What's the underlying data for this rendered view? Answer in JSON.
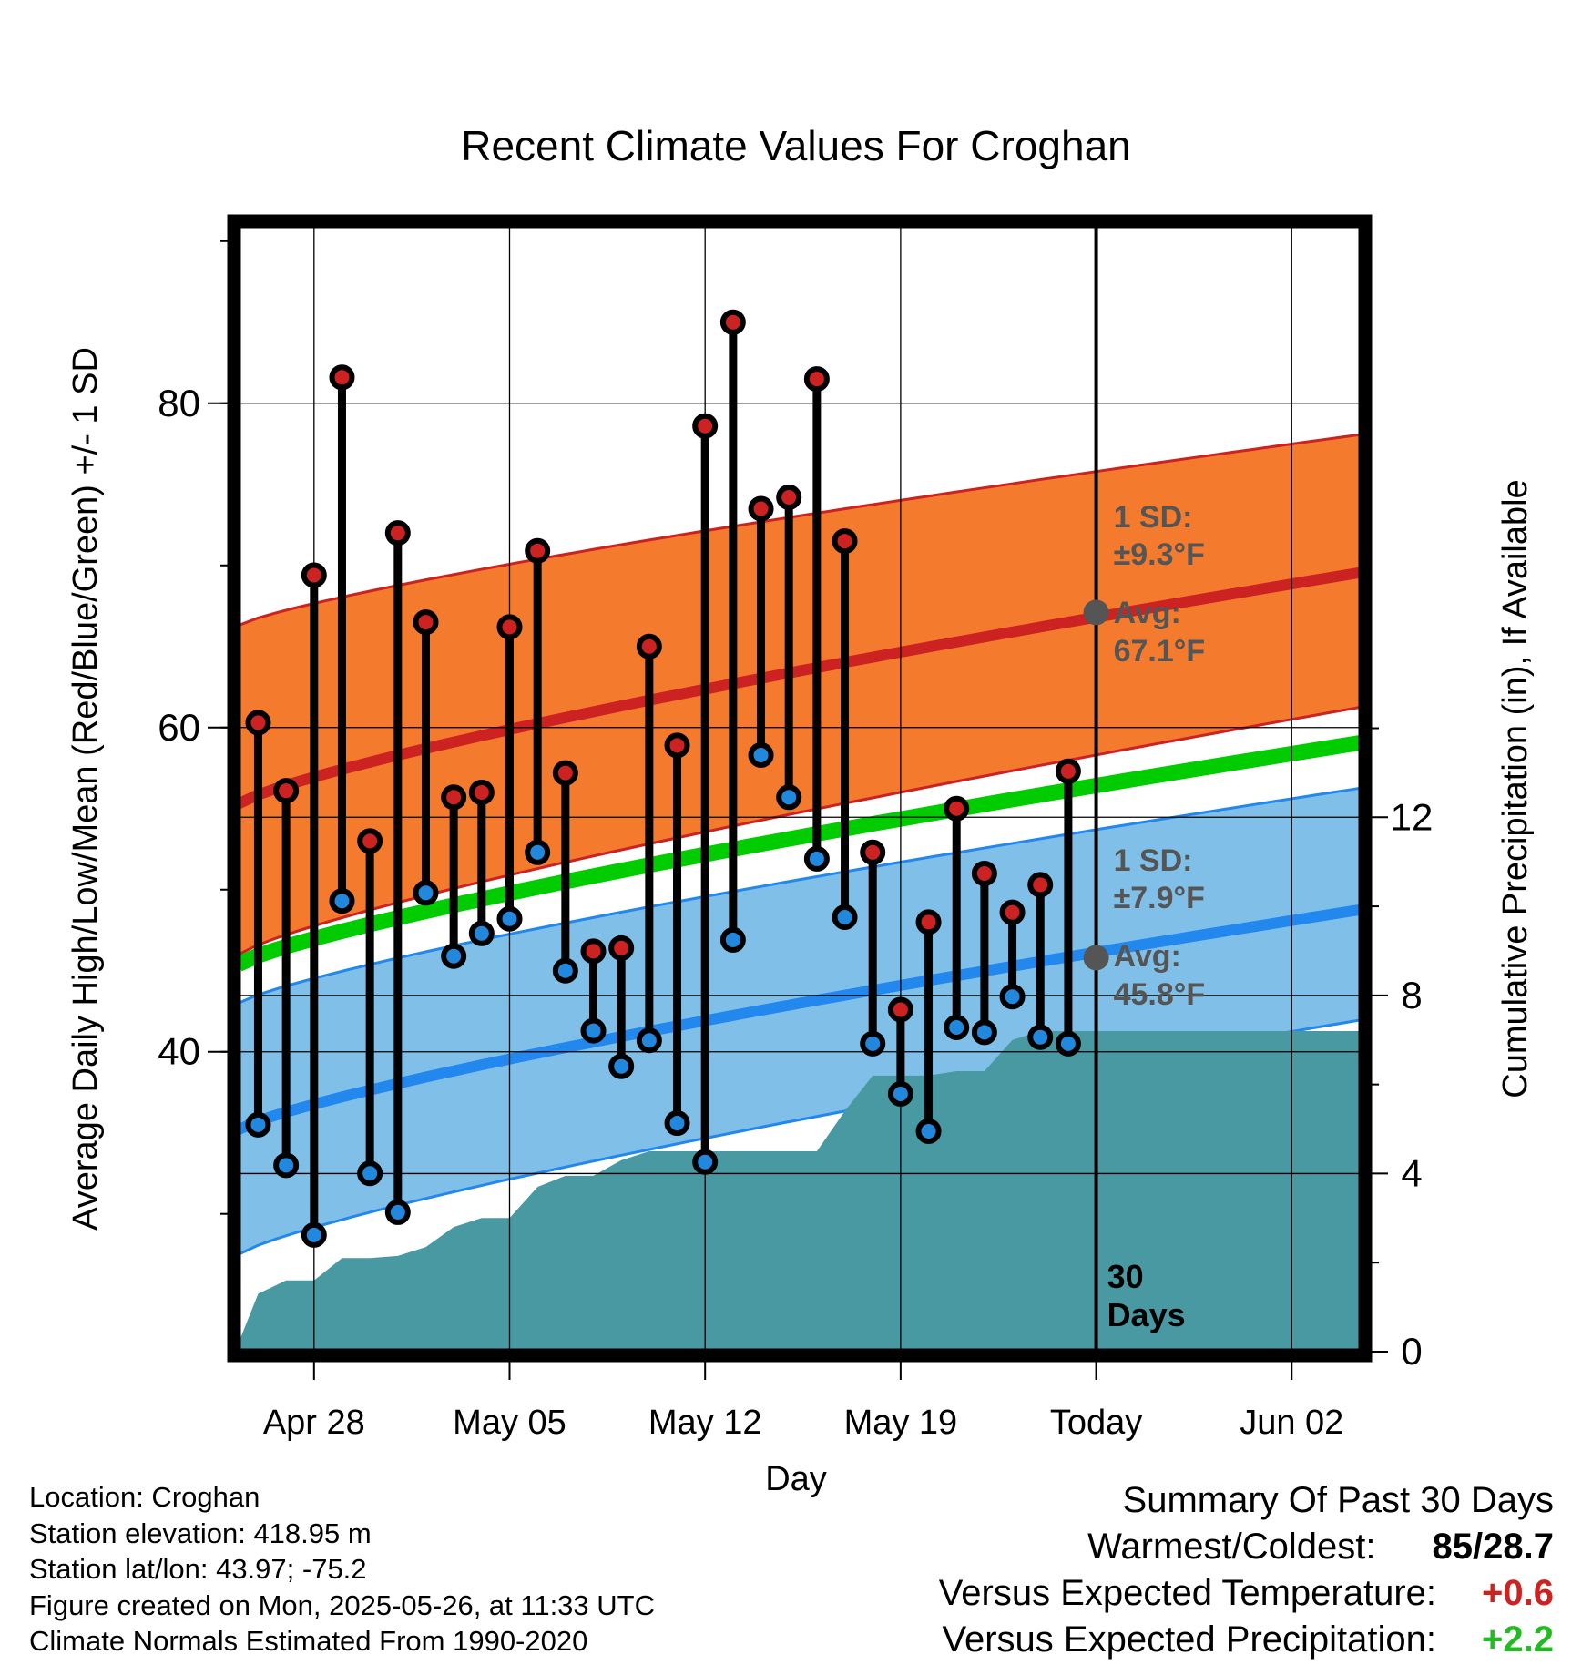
{
  "chart_data": {
    "type": "line",
    "title": "Recent Climate Values For Croghan",
    "xlabel": "Day",
    "ylabel_left": "Average Daily High/Low/Mean (Red/Blue/Green) +/- 1 SD",
    "ylabel_right": "Cumulative Precipitation (in), If Available",
    "x_tick_labels": [
      "Apr 28",
      "May 05",
      "May 12",
      "May 19",
      "Today",
      "Jun 02"
    ],
    "y_left_ticks": [
      "40",
      "60",
      "80"
    ],
    "y_right_ticks": [
      "0",
      "4",
      "8",
      "12"
    ],
    "ylim_left": [
      21.5,
      91
    ],
    "ylim_right": [
      0,
      25.3
    ],
    "x_days": [
      1,
      2,
      3,
      4,
      5,
      6,
      7,
      8,
      9,
      10,
      11,
      12,
      13,
      14,
      15,
      16,
      17,
      18,
      19,
      20,
      21,
      22,
      23,
      24,
      25,
      26,
      27,
      28,
      29,
      30
    ],
    "x_tick_days": [
      3,
      10,
      17,
      24,
      31,
      38
    ],
    "today_day": 31,
    "x_range_days": [
      0.3,
      40.6
    ],
    "series": [
      {
        "name": "High",
        "color": "#cc2222",
        "values": [
          60.3,
          56.1,
          69.4,
          81.6,
          53.0,
          72.0,
          66.5,
          55.7,
          56.0,
          66.2,
          70.9,
          57.2,
          46.2,
          46.4,
          65.0,
          58.9,
          78.6,
          85.0,
          73.5,
          74.2,
          81.5,
          71.5,
          52.3,
          42.6,
          48.0,
          55.0,
          51.0,
          48.6,
          50.3,
          57.3
        ]
      },
      {
        "name": "Low",
        "color": "#2288dd",
        "values": [
          35.5,
          33.0,
          28.7,
          49.3,
          32.5,
          30.1,
          49.8,
          45.9,
          47.3,
          48.2,
          52.3,
          45.0,
          41.3,
          39.1,
          40.7,
          35.6,
          33.2,
          46.9,
          58.3,
          55.7,
          51.9,
          48.3,
          40.5,
          37.4,
          35.1,
          41.5,
          41.2,
          43.4,
          40.9,
          40.5
        ]
      }
    ],
    "normals": {
      "high_avg_start": 55.3,
      "high_avg_end": 69.6,
      "high_sd_lo_start": 46.0,
      "high_sd_lo_end": 61.3,
      "high_sd_hi_start": 66.3,
      "high_sd_hi_end": 78.1,
      "mean_start": 45.4,
      "mean_end": 59.1,
      "low_avg_start": 35.2,
      "low_avg_end": 48.8,
      "low_sd_lo_start": 27.5,
      "low_sd_lo_end": 42.0,
      "low_sd_hi_start": 43.0,
      "low_sd_hi_end": 56.3,
      "today_high_avg": 67.1,
      "today_low_avg": 45.8
    },
    "precip_cumulative": {
      "days": [
        0.3,
        1,
        2,
        3,
        4,
        5,
        6,
        7,
        8,
        9,
        10,
        11,
        12,
        13,
        14,
        15,
        16,
        17,
        18,
        19,
        20,
        21,
        22,
        23,
        24,
        25,
        26,
        27,
        28,
        29,
        30,
        31,
        40.6
      ],
      "values": [
        0.2,
        1.3,
        1.6,
        1.6,
        2.1,
        2.1,
        2.15,
        2.35,
        2.8,
        3.0,
        3.0,
        3.7,
        3.95,
        3.95,
        4.3,
        4.5,
        4.5,
        4.5,
        4.5,
        4.5,
        4.5,
        4.5,
        5.4,
        6.2,
        6.2,
        6.2,
        6.3,
        6.3,
        7.0,
        7.2,
        7.2,
        7.2,
        7.2
      ]
    },
    "annotations": {
      "high_sd_label": "1 SD:",
      "high_sd_value": "±9.3°F",
      "high_avg_label": "Avg:",
      "high_avg_value": "67.1°F",
      "low_sd_label": "1 SD:",
      "low_sd_value": "±7.9°F",
      "low_avg_label": "Avg:",
      "low_avg_value": "45.8°F",
      "days_label_1": "30",
      "days_label_2": "Days"
    },
    "colors": {
      "high_band": "#f47b2e",
      "high_line": "#cc2222",
      "low_band": "#80c0e8",
      "low_line": "#2288ee",
      "mean_line": "#00cc00",
      "precip": "#4999a3",
      "annotation": "#555555"
    },
    "grid": true
  },
  "footer": {
    "location": "Location: Croghan",
    "elevation": "Station elevation: 418.95 m",
    "latlon": "Station lat/lon: 43.97; -75.2",
    "created": "Figure created on Mon, 2025-05-26, at 11:33 UTC",
    "normals": "Climate Normals Estimated From 1990-2020"
  },
  "summary": {
    "title": "Summary Of Past 30 Days",
    "warm_cold_label": "Warmest/Coldest:",
    "warmest": "85",
    "coldest": "28.7",
    "temp_label": "Versus Expected Temperature:",
    "temp_value": "+0.6",
    "temp_color": "#cc2222",
    "precip_label": "Versus Expected Precipitation:",
    "precip_value": "+2.2",
    "precip_color": "#22bb22"
  }
}
